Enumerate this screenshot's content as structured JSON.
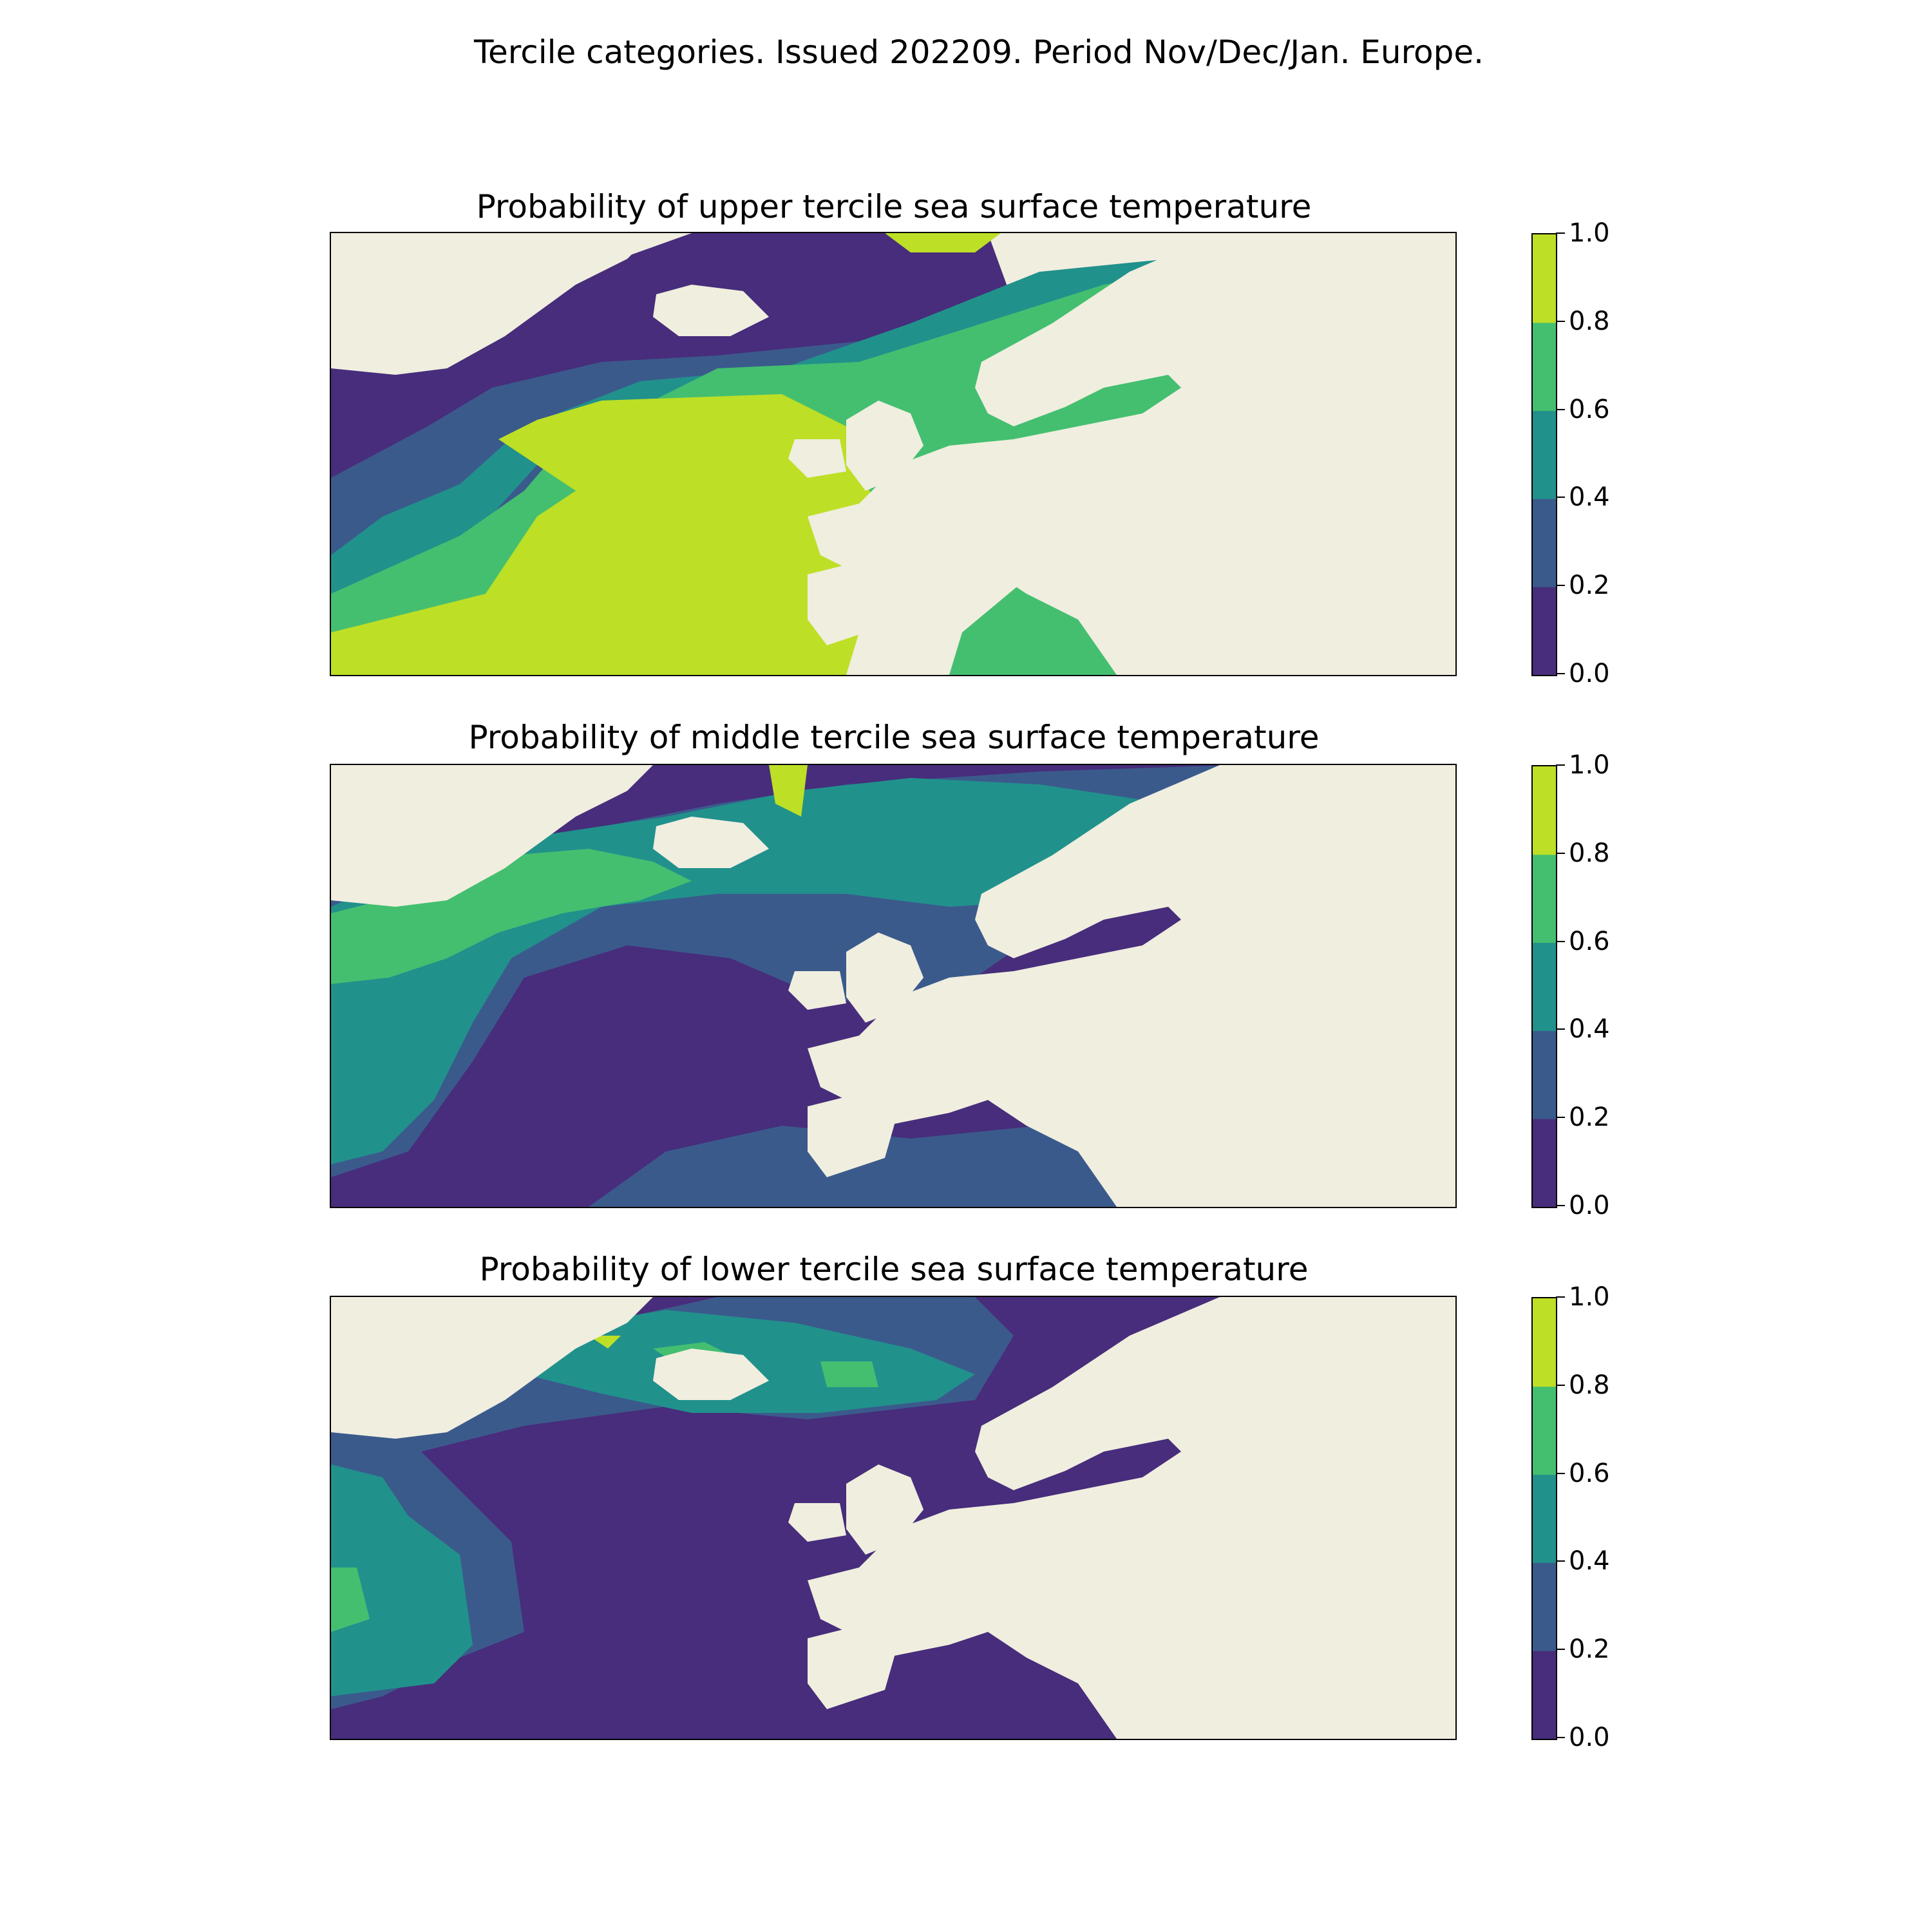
{
  "title": "Tercile categories. Issued 202209. Period Nov/Dec/Jan. Europe.",
  "colorbar": {
    "ticks": [
      "0.0",
      "0.2",
      "0.4",
      "0.6",
      "0.8",
      "1.0"
    ],
    "colors": [
      "#472d7b",
      "#3b5a8c",
      "#21918c",
      "#44bf70",
      "#bddf26"
    ]
  },
  "land_color": "#f0eedf",
  "panels": [
    {
      "title": "Probability of upper tercile sea surface temperature",
      "dominant_level": "0.8-1.0"
    },
    {
      "title": "Probability of middle tercile sea surface temperature",
      "dominant_level": "0.0-0.2"
    },
    {
      "title": "Probability of lower tercile sea surface temperature",
      "dominant_level": "0.0-0.2"
    }
  ]
}
